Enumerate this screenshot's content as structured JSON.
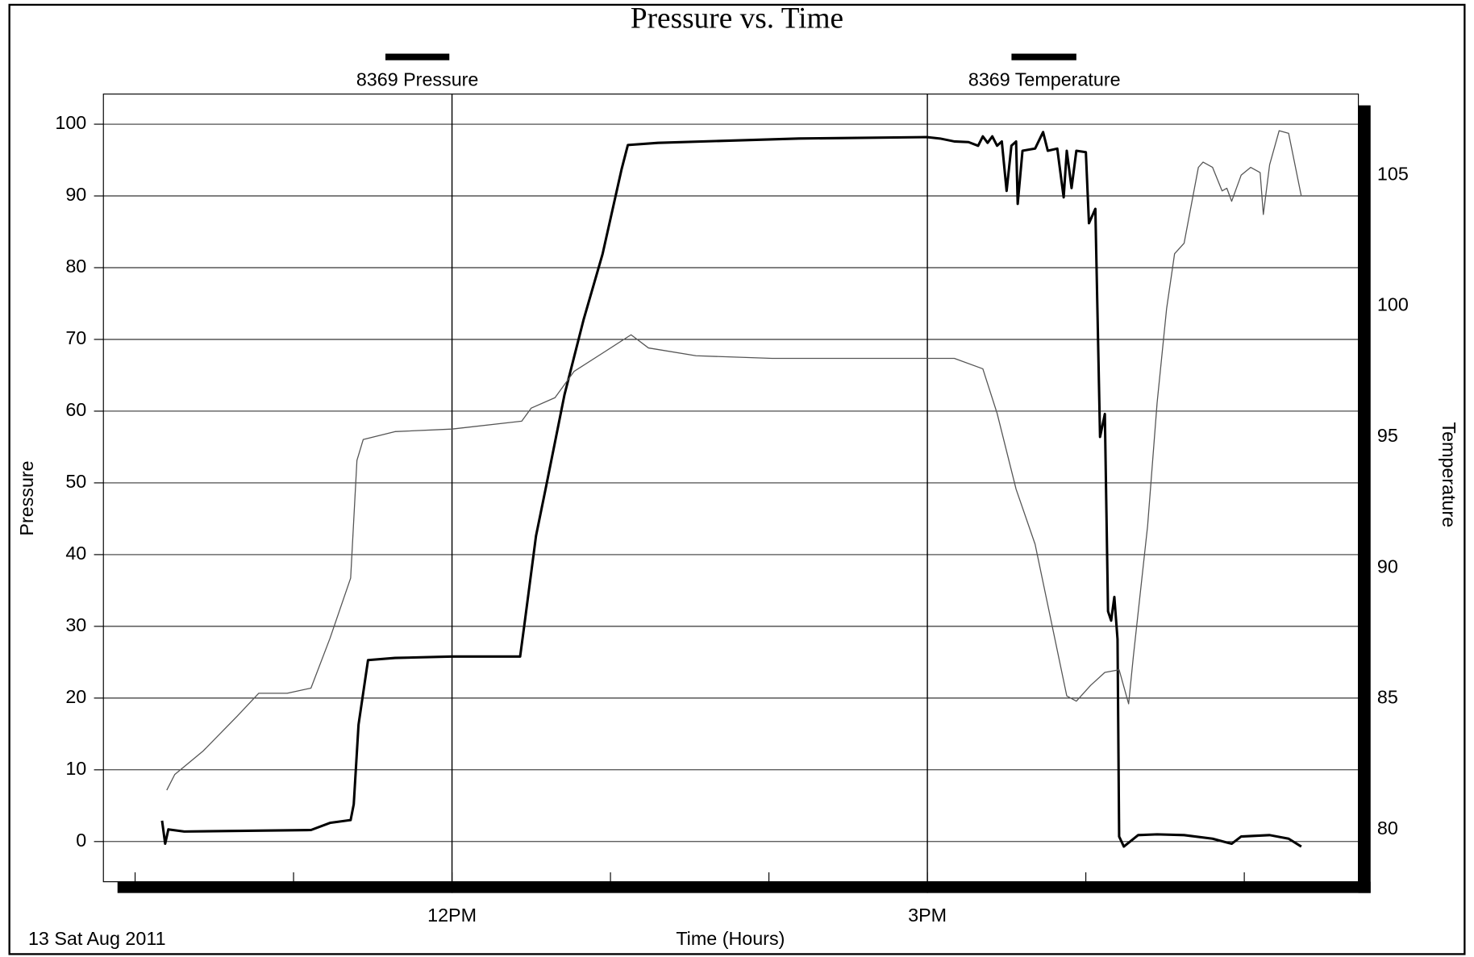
{
  "chart_data": {
    "type": "line",
    "title": "Pressure vs. Time",
    "xlabel": "Time (Hours)",
    "ylabel": "Pressure",
    "y2label": "Temperature",
    "date_label": "13 Sat Aug 2011",
    "xlim": [
      9.8,
      17.72
    ],
    "xticks": [
      {
        "value": 12,
        "label": "12PM"
      },
      {
        "value": 15,
        "label": "3PM"
      }
    ],
    "xminorticks": [
      10,
      11,
      13,
      14,
      16,
      17
    ],
    "ylim": [
      -5.6,
      104.2
    ],
    "yticks": [
      0,
      10,
      20,
      30,
      40,
      50,
      60,
      70,
      80,
      90,
      100
    ],
    "y2lim": [
      78,
      108.1
    ],
    "y2ticks": [
      80,
      85,
      90,
      95,
      100,
      105
    ],
    "grid": true,
    "series": [
      {
        "name": "8369 Pressure",
        "color": "#000000",
        "x": [
          10.17,
          10.19,
          10.21,
          10.31,
          11.11,
          11.23,
          11.36,
          11.38,
          11.41,
          11.47,
          11.64,
          12.0,
          12.43,
          12.46,
          12.53,
          12.59,
          12.65,
          12.71,
          12.77,
          12.83,
          12.95,
          13.07,
          13.11,
          13.3,
          14.19,
          15.0,
          15.08,
          15.17,
          15.26,
          15.32,
          15.35,
          15.38,
          15.41,
          15.44,
          15.47,
          15.5,
          15.53,
          15.56,
          15.57,
          15.6,
          15.68,
          15.73,
          15.76,
          15.82,
          15.86,
          15.88,
          15.91,
          15.94,
          16.0,
          16.02,
          16.06,
          16.09,
          16.12,
          16.14,
          16.16,
          16.18,
          16.2,
          16.21,
          16.24,
          16.33,
          16.45,
          16.62,
          16.8,
          16.92,
          16.98,
          17.16,
          17.28,
          17.36
        ],
        "values": [
          2.9,
          -0.3,
          1.7,
          1.4,
          1.6,
          2.6,
          3.0,
          5.2,
          16.3,
          25.3,
          25.6,
          25.8,
          25.8,
          30.8,
          42.6,
          49.1,
          55.7,
          62.3,
          67.5,
          72.7,
          81.9,
          93.7,
          97.1,
          97.4,
          98.0,
          98.2,
          98.0,
          97.6,
          97.5,
          97.0,
          98.3,
          97.4,
          98.3,
          97.0,
          97.6,
          90.7,
          97.0,
          97.6,
          88.9,
          96.3,
          96.6,
          98.9,
          96.3,
          96.6,
          89.8,
          96.3,
          91.1,
          96.3,
          96.1,
          86.2,
          88.2,
          56.4,
          59.6,
          32.1,
          30.8,
          34.1,
          28.2,
          0.7,
          -0.7,
          0.9,
          1.0,
          0.9,
          0.4,
          -0.3,
          0.7,
          0.9,
          0.4,
          -0.7
        ]
      },
      {
        "name": "8369 Temperature",
        "color": "#555555",
        "axis": "y2",
        "x": [
          10.2,
          10.25,
          10.43,
          10.64,
          10.78,
          10.96,
          11.11,
          11.23,
          11.36,
          11.4,
          11.44,
          11.64,
          12.0,
          12.44,
          12.5,
          12.65,
          12.77,
          12.95,
          13.13,
          13.24,
          13.54,
          14.02,
          14.49,
          15.0,
          15.17,
          15.35,
          15.44,
          15.56,
          15.68,
          15.79,
          15.88,
          15.94,
          16.03,
          16.12,
          16.21,
          16.27,
          16.3,
          16.39,
          16.45,
          16.51,
          16.56,
          16.62,
          16.71,
          16.74,
          16.8,
          16.86,
          16.89,
          16.92,
          16.98,
          17.04,
          17.1,
          17.12,
          17.16,
          17.22,
          17.28,
          17.36
        ],
        "values": [
          81.5,
          82.1,
          83.0,
          84.3,
          85.2,
          85.2,
          85.4,
          87.3,
          89.6,
          94.1,
          94.9,
          95.2,
          95.3,
          95.6,
          96.1,
          96.5,
          97.5,
          98.2,
          98.9,
          98.4,
          98.1,
          98.0,
          98.0,
          98.0,
          98.0,
          97.6,
          95.9,
          93.0,
          90.9,
          87.7,
          85.1,
          84.9,
          85.5,
          86.0,
          86.1,
          84.8,
          86.6,
          91.6,
          96.3,
          99.9,
          102.0,
          102.4,
          105.3,
          105.5,
          105.3,
          104.4,
          104.5,
          104.0,
          105.0,
          105.3,
          105.1,
          103.5,
          105.4,
          106.7,
          106.6,
          104.2
        ]
      }
    ]
  }
}
